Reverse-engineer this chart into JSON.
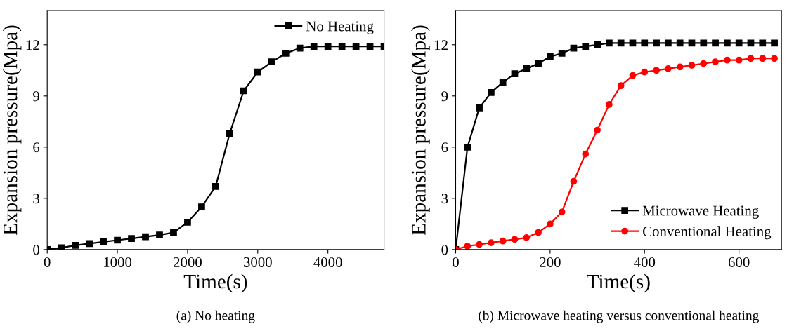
{
  "chart_data": [
    {
      "type": "line",
      "xlabel": "Time(s)",
      "ylabel": "Expansion pressure(Mpa)",
      "annotations": [
        "(a) No heating"
      ],
      "xlim": [
        0,
        4800
      ],
      "xticks": [
        0,
        1000,
        2000,
        3000,
        4000
      ],
      "ylim": [
        0,
        14
      ],
      "yticks": [
        0,
        3,
        6,
        9,
        12
      ],
      "grid": false,
      "legend": "top right",
      "marker": "square",
      "line_style": "solid",
      "series": [
        {
          "name": "No Heating",
          "color": "#000000",
          "x": [
            0,
            200,
            400,
            600,
            800,
            1000,
            1200,
            1400,
            1600,
            1800,
            2000,
            2200,
            2400,
            2600,
            2800,
            3000,
            3200,
            3400,
            3600,
            3800,
            4000,
            4200,
            4400,
            4600,
            4800
          ],
          "values": [
            0,
            0.1,
            0.25,
            0.35,
            0.45,
            0.55,
            0.65,
            0.75,
            0.85,
            1.0,
            1.6,
            2.5,
            3.7,
            6.8,
            9.3,
            10.4,
            11.0,
            11.5,
            11.8,
            11.9,
            11.9,
            11.9,
            11.9,
            11.9,
            11.9
          ]
        }
      ]
    },
    {
      "type": "line",
      "xlabel": "Time(s)",
      "ylabel": "Expansion pressure(Mpa)",
      "annotations": [
        "(b) Microwave heating versus conventional heating"
      ],
      "xlim": [
        0,
        690
      ],
      "xticks": [
        0,
        200,
        400,
        600
      ],
      "ylim": [
        0,
        14
      ],
      "yticks": [
        0,
        3,
        6,
        9,
        12
      ],
      "grid": false,
      "legend": "bottom right",
      "line_style": "solid",
      "series": [
        {
          "name": "Microwave Heating",
          "color": "#000000",
          "marker": "square",
          "x": [
            0,
            25,
            50,
            75,
            100,
            125,
            150,
            175,
            200,
            225,
            250,
            275,
            300,
            325,
            350,
            375,
            400,
            425,
            450,
            475,
            500,
            525,
            550,
            575,
            600,
            625,
            650,
            675
          ],
          "values": [
            0,
            6.0,
            8.3,
            9.2,
            9.8,
            10.3,
            10.6,
            10.9,
            11.3,
            11.5,
            11.8,
            11.9,
            12.0,
            12.1,
            12.1,
            12.1,
            12.1,
            12.1,
            12.1,
            12.1,
            12.1,
            12.1,
            12.1,
            12.1,
            12.1,
            12.1,
            12.1,
            12.1
          ]
        },
        {
          "name": "Conventional Heating",
          "color": "#ff0000",
          "marker": "circle",
          "x": [
            0,
            25,
            50,
            75,
            100,
            125,
            150,
            175,
            200,
            225,
            250,
            275,
            300,
            325,
            350,
            375,
            400,
            425,
            450,
            475,
            500,
            525,
            550,
            575,
            600,
            625,
            650,
            675
          ],
          "values": [
            0,
            0.2,
            0.3,
            0.4,
            0.5,
            0.6,
            0.7,
            1.0,
            1.5,
            2.2,
            4.0,
            5.6,
            7.0,
            8.5,
            9.6,
            10.2,
            10.4,
            10.5,
            10.6,
            10.7,
            10.8,
            10.9,
            11.0,
            11.1,
            11.1,
            11.2,
            11.2,
            11.2
          ]
        }
      ]
    }
  ]
}
